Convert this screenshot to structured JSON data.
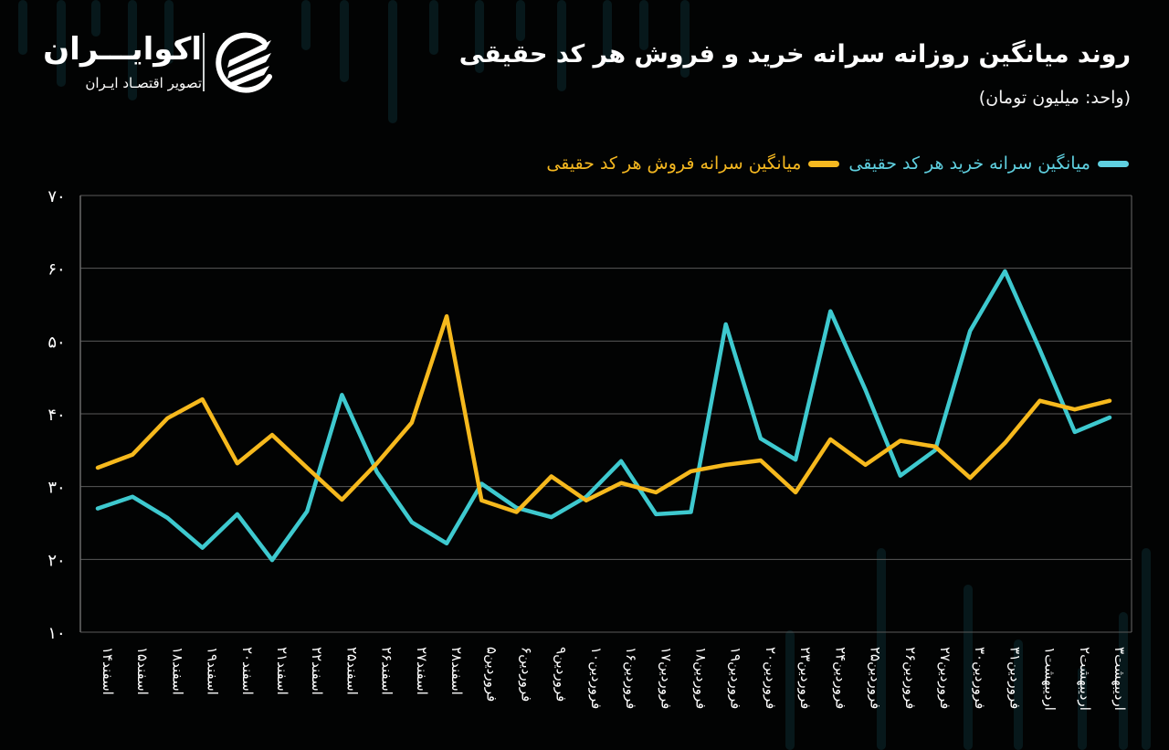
{
  "header": {
    "title": "روند میانگین روزانه سرانه خرید و فروش هر کد حقیقی",
    "subtitle": "(واحد: میلیون تومان)"
  },
  "logo": {
    "name": "اکوایـــران",
    "tagline": "تصویر اقتصـاد ایـران",
    "icon": "ecoiran-logo-icon"
  },
  "legend": [
    {
      "label": "میانگین سرانه خرید هر کد حقیقی",
      "color": "#5fd0e0"
    },
    {
      "label": "میانگین سرانه فروش هر کد حقیقی",
      "color": "#f5b820"
    }
  ],
  "colors": {
    "background": "#020303",
    "buy_line": "#3ec9cf",
    "sell_line": "#f6b91d",
    "grid": "#5a5a5a",
    "text": "#ffffff"
  },
  "chart_data": {
    "type": "line",
    "title": "روند میانگین روزانه سرانه خرید و فروش هر کد حقیقی",
    "subtitle": "(واحد: میلیون تومان)",
    "xlabel": "",
    "ylabel": "",
    "ylim": [
      10,
      70
    ],
    "yticks": [
      10,
      20,
      30,
      40,
      50,
      60,
      70
    ],
    "ytick_labels": [
      "۱۰",
      "۲۰",
      "۳۰",
      "۴۰",
      "۵۰",
      "۶۰",
      "۷۰"
    ],
    "grid": true,
    "legend_position": "top",
    "categories": [
      "اسفند۱۴",
      "اسفند۱۵",
      "اسفند۱۸",
      "اسفند۱۹",
      "اسفند۲۰",
      "اسفند۲۱",
      "اسفند۲۲",
      "اسفند۲۵",
      "اسفند۲۶",
      "اسفند۲۷",
      "اسفند۲۸",
      "فروردین۵",
      "فروردین۶",
      "فروردین۹",
      "فروردین۱۰",
      "فروردین۱۶",
      "فروردین۱۷",
      "فروردین۱۸",
      "فروردین۱۹",
      "فروردین۲۰",
      "فروردین۲۳",
      "فروردین۲۴",
      "فروردین۲۵",
      "فروردین۲۶",
      "فروردین۲۷",
      "فروردین۳۰",
      "فروردین۳۱",
      "اردیبهشت۱",
      "اردیبهشت۲",
      "اردیبهشت۳"
    ],
    "series": [
      {
        "name": "میانگین سرانه خرید هر کد حقیقی",
        "color": "#3ec9cf",
        "values": [
          27.0,
          28.6,
          25.7,
          21.6,
          26.2,
          19.9,
          26.6,
          42.6,
          32.0,
          25.1,
          22.2,
          30.4,
          27.1,
          25.8,
          28.6,
          33.5,
          26.2,
          26.5,
          52.3,
          36.6,
          33.7,
          54.1,
          43.3,
          31.5,
          35.0,
          51.4,
          59.6,
          48.8,
          37.5,
          39.5
        ]
      },
      {
        "name": "میانگین سرانه فروش هر کد حقیقی",
        "color": "#f6b91d",
        "values": [
          32.6,
          34.4,
          39.4,
          42.0,
          33.2,
          37.1,
          32.6,
          28.2,
          33.2,
          38.8,
          53.4,
          28.1,
          26.5,
          31.4,
          28.1,
          30.5,
          29.2,
          32.1,
          33.0,
          33.6,
          29.2,
          36.5,
          33.0,
          36.3,
          35.5,
          31.2,
          36.0,
          41.8,
          40.6,
          41.8
        ]
      }
    ]
  }
}
